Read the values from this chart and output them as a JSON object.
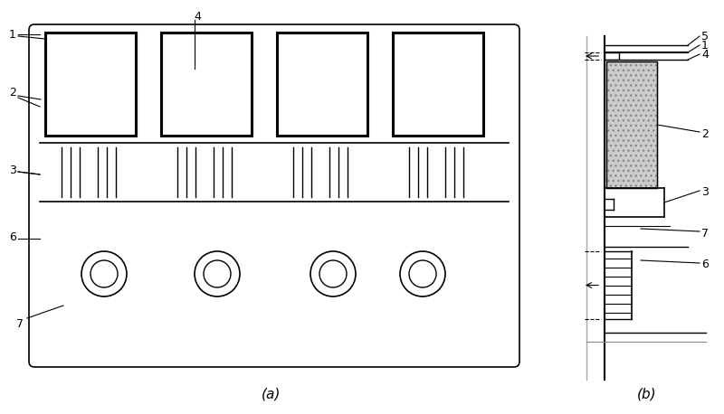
{
  "bg_color": "#ffffff",
  "line_color": "#000000",
  "fig_width": 8.0,
  "fig_height": 4.58,
  "label_a": "(a)",
  "label_b": "(b)"
}
